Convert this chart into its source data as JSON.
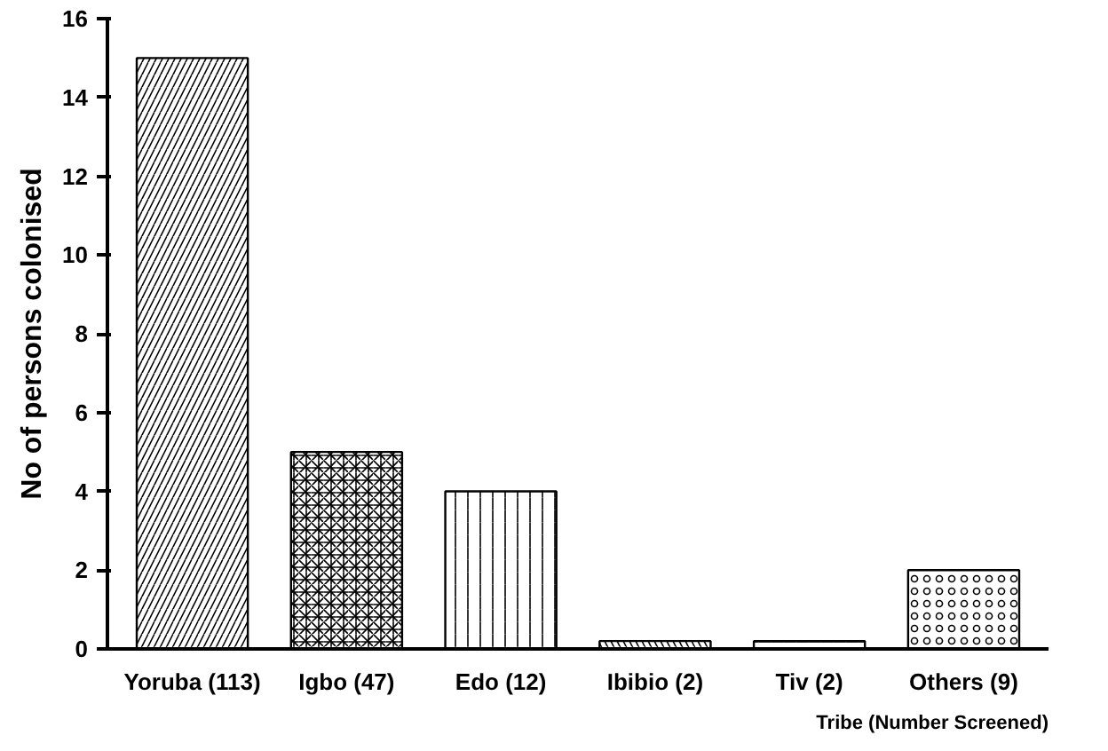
{
  "chart_data": {
    "type": "bar",
    "xlabel": "Tribe (Number Screened)",
    "ylabel": "No of persons colonised",
    "categories": [
      "Yoruba (113)",
      "Igbo (47)",
      "Edo (12)",
      "Ibibio (2)",
      "Tiv (2)",
      "Others (9)"
    ],
    "values": [
      15,
      5,
      4,
      0.2,
      0.2,
      2
    ],
    "color": "#000000",
    "ylim": [
      0,
      16
    ],
    "yticks": [
      0,
      2,
      4,
      6,
      8,
      10,
      12,
      14,
      16
    ],
    "grid": false
  }
}
